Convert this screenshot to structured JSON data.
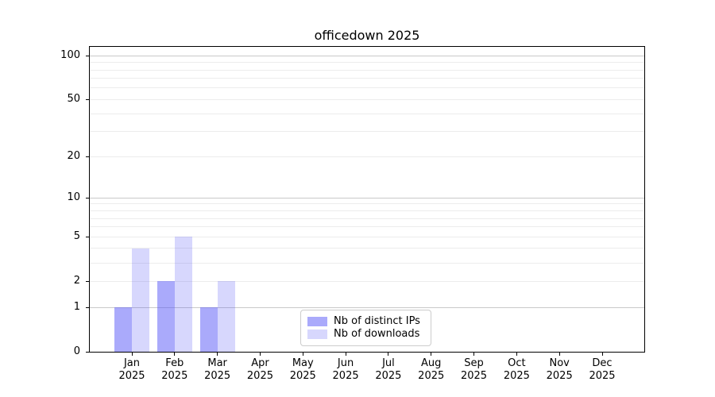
{
  "title": "officedown 2025",
  "chart_data": {
    "type": "bar",
    "title": "officedown 2025",
    "categories": [
      "Jan",
      "Feb",
      "Mar",
      "Apr",
      "May",
      "Jun",
      "Jul",
      "Aug",
      "Sep",
      "Oct",
      "Nov",
      "Dec"
    ],
    "category_sublabel": "2025",
    "series": [
      {
        "name": "Nb of distinct IPs",
        "values": [
          1,
          2,
          1,
          0,
          0,
          0,
          0,
          0,
          0,
          0,
          0,
          0
        ],
        "color": "rgba(86,86,248,0.5)"
      },
      {
        "name": "Nb of downloads",
        "values": [
          4,
          5,
          2,
          0,
          0,
          0,
          0,
          0,
          0,
          0,
          0,
          0
        ],
        "color": "rgba(86,86,248,0.235)"
      }
    ],
    "xlabel": "",
    "ylabel": "",
    "y_ticks": [
      0,
      1,
      2,
      5,
      10,
      20,
      50,
      100
    ],
    "y_tick_labels": [
      "0",
      "1",
      "2",
      "5",
      "10",
      "20",
      "50",
      "100"
    ],
    "scale": "log10(1+y)",
    "ylim": [
      0,
      115
    ],
    "grid": {
      "on": true,
      "major_values": [
        1,
        10,
        100
      ],
      "minor_values": [
        2,
        3,
        4,
        5,
        6,
        7,
        8,
        9,
        20,
        30,
        40,
        50,
        60,
        70,
        80,
        90
      ],
      "major_color": "#c9c9c9",
      "minor_color": "#ececec"
    },
    "legend": {
      "position": "bottom-center-inside",
      "entries": [
        "Nb of distinct IPs",
        "Nb of downloads"
      ]
    },
    "colors": {
      "bar_dark": "#aaaaf8",
      "bar_light": "#d8d8f8",
      "axis": "#000000"
    }
  }
}
